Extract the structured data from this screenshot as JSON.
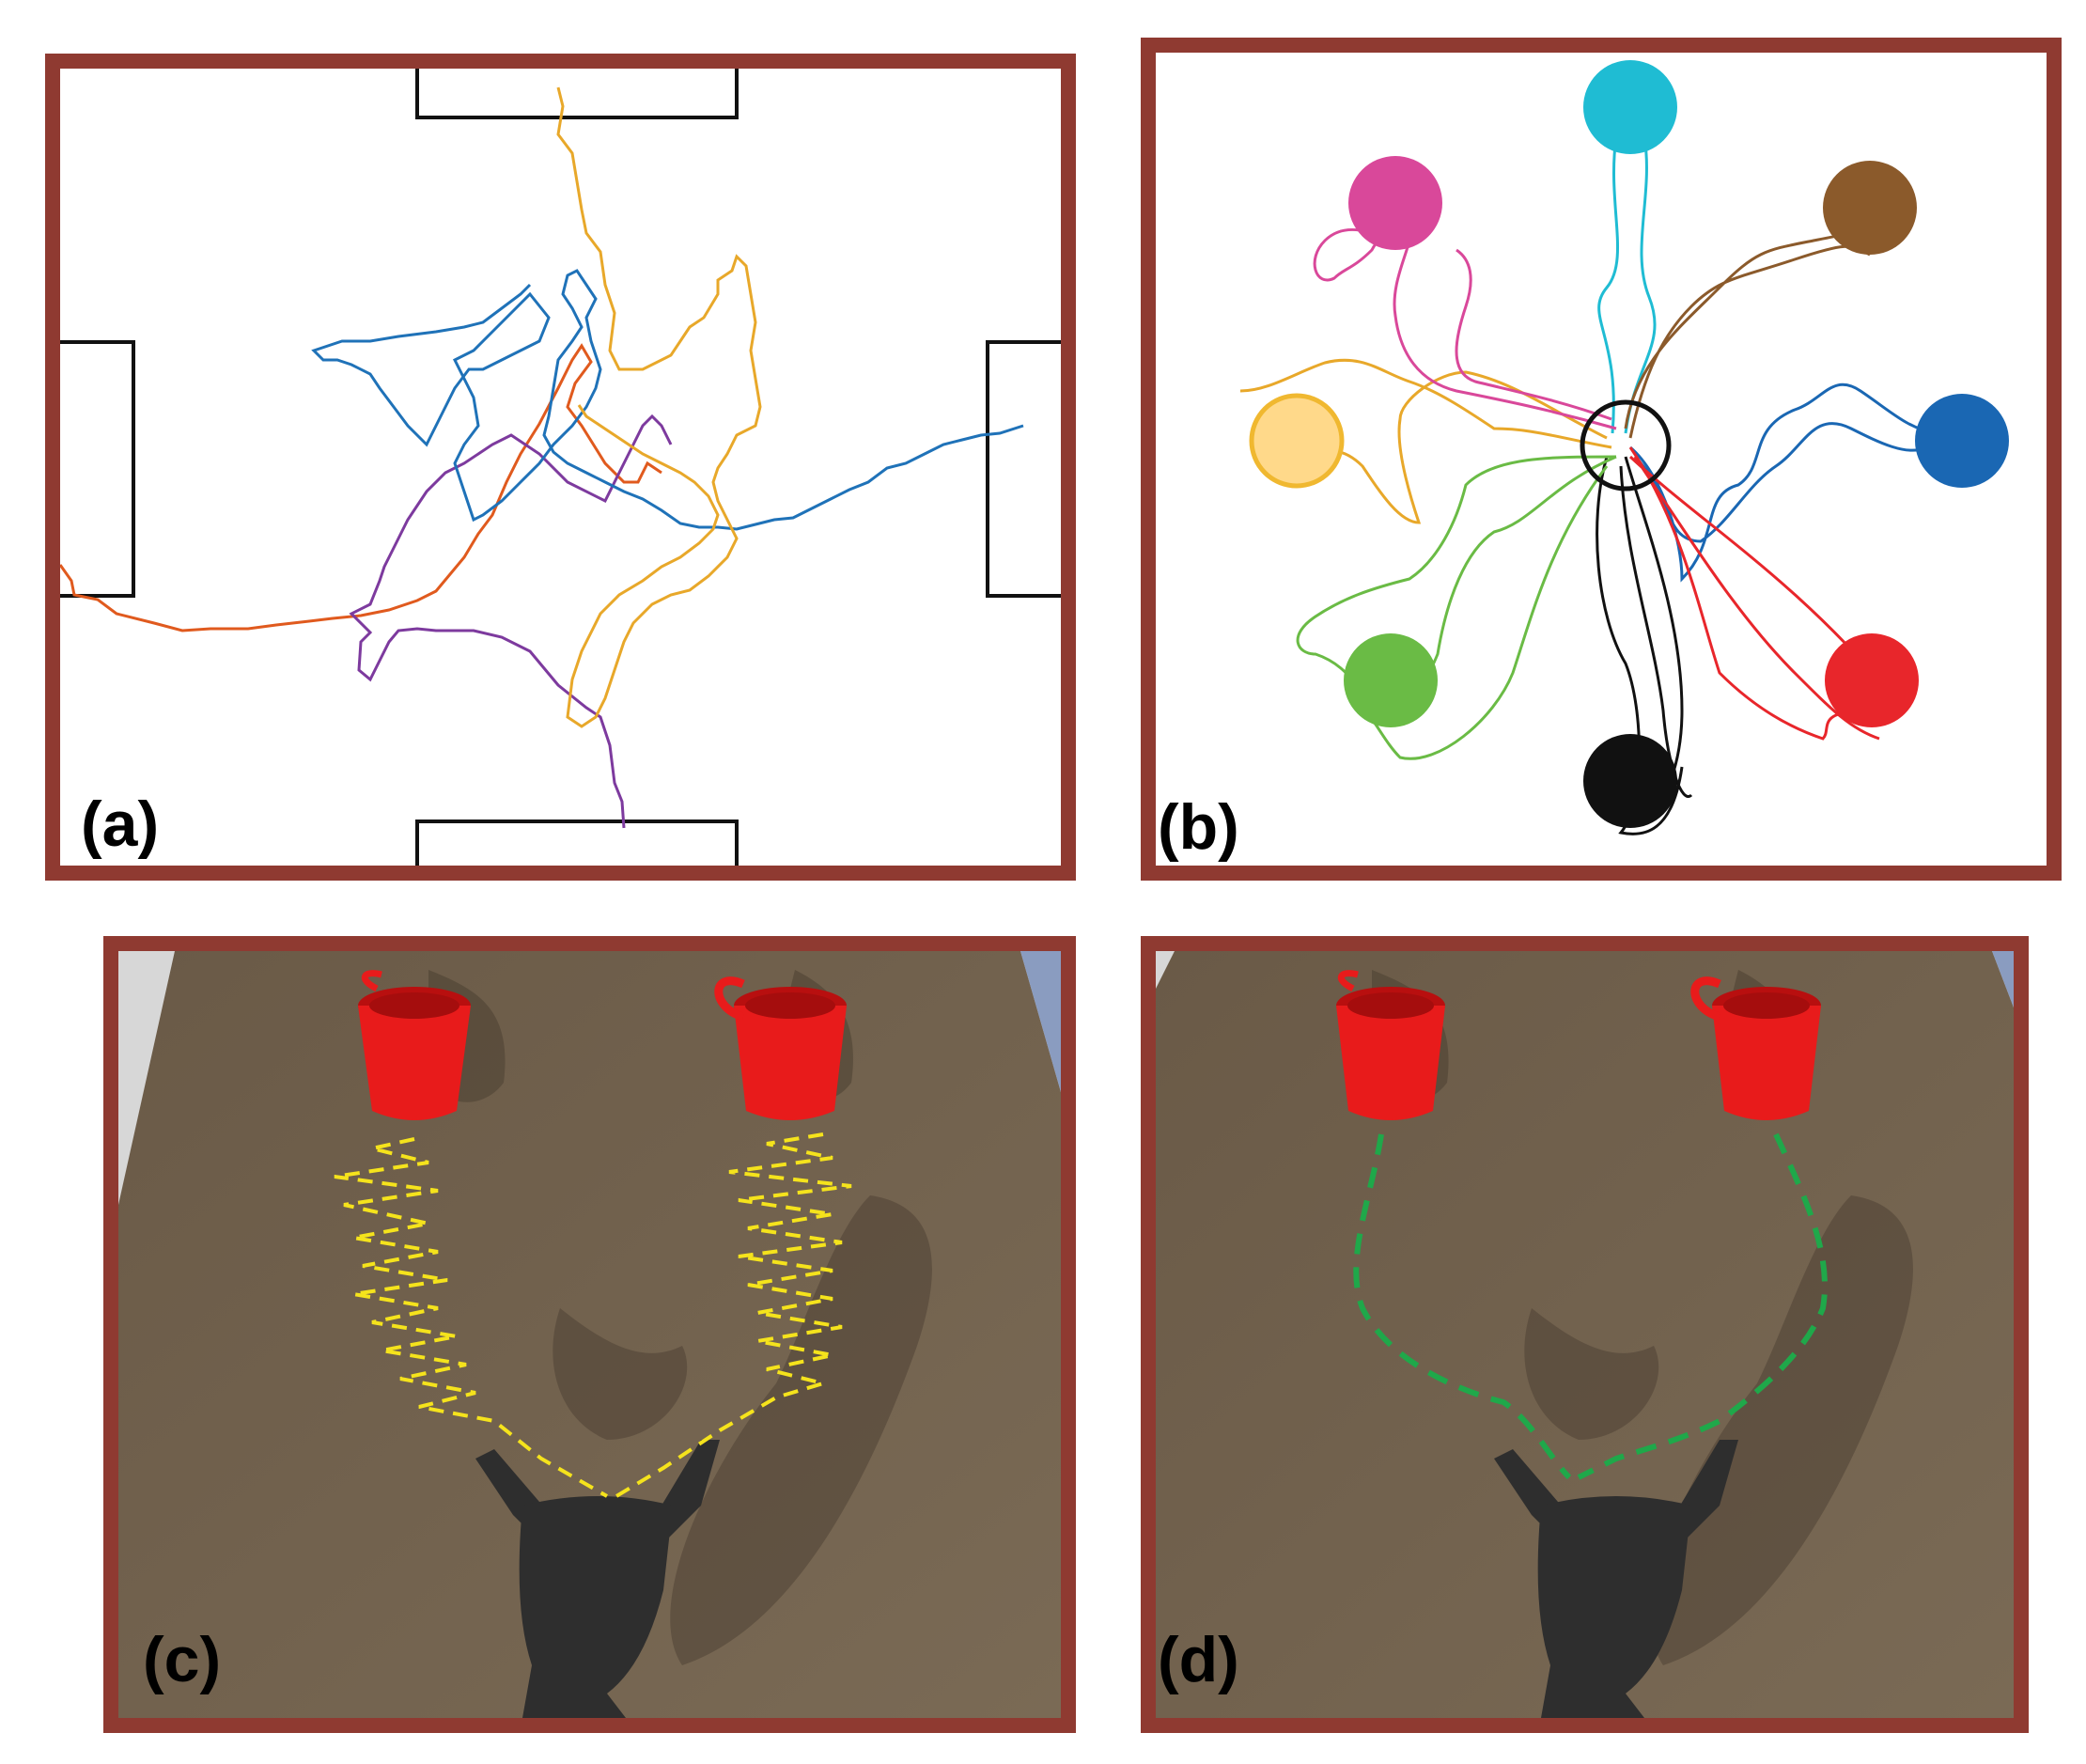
{
  "panels": {
    "a": {
      "label": "(a)"
    },
    "b": {
      "label": "(b)"
    },
    "c": {
      "label": "(c)"
    },
    "d": {
      "label": "(d)"
    }
  },
  "colors": {
    "frame": "#8f3a31",
    "traj_a": [
      "#e8a82a",
      "#1f72b8",
      "#e05a1e",
      "#7d3a9e"
    ],
    "targets_b": [
      "#1fbcd3",
      "#8b5a2b",
      "#1a67b3",
      "#e8262b",
      "#111111",
      "#6abb45",
      "#ffd98a",
      "#d9489a"
    ],
    "yellow_path": "#f5e31c",
    "green_path": "#1fa84a",
    "table": "#6b5a45",
    "mug": "#e81b1b"
  }
}
